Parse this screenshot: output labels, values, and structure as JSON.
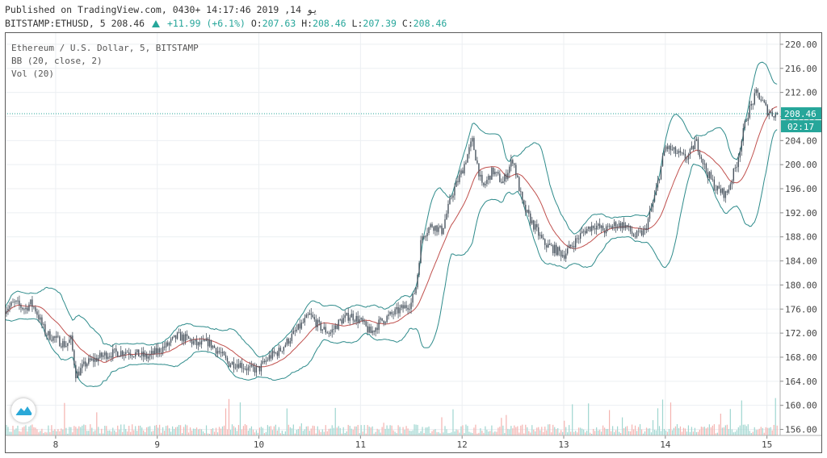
{
  "header": {
    "published": "Published on TradingView.com, يو 14, 2019 14:17:46 +0430",
    "symbol_line": "BITSTAMP:ETHUSD, 5",
    "last_price": "208.46",
    "change": "+11.99 (+6.1%)",
    "o_label": "O:",
    "o_value": "207.63",
    "h_label": "H:",
    "h_value": "208.46",
    "l_label": "L:",
    "l_value": "207.39",
    "c_label": "C:",
    "c_value": "208.46"
  },
  "legend": {
    "series_title": "Ethereum / U.S. Dollar, 5, BITSTAMP",
    "bb": "BB (20, close, 2)",
    "vol": "Vol (20)"
  },
  "price_badge": "208.46",
  "countdown_badge": "02:17",
  "colors": {
    "candle_up": "#26a69a",
    "candle_down": "#ef5350",
    "bb_band": "#2e8b8b",
    "bb_basis": "#c0504d",
    "vol_up": "#9fd6d0",
    "vol_down": "#f4b3b0",
    "price_line": "#26a69a"
  },
  "chart_data": {
    "type": "line",
    "x_tick_labels": [
      "8",
      "9",
      "10",
      "11",
      "12",
      "13",
      "14",
      "15"
    ],
    "y_tick_labels": [
      "156.00",
      "160.00",
      "164.00",
      "168.00",
      "172.00",
      "176.00",
      "180.00",
      "184.00",
      "188.00",
      "192.00",
      "196.00",
      "200.00",
      "204.00",
      "208.00",
      "212.00",
      "216.00",
      "220.00"
    ],
    "ylim": [
      155,
      222
    ],
    "xlim": [
      7.5,
      15.13
    ],
    "grid": true,
    "last_price": 208.46,
    "series": [
      {
        "kind": "close",
        "x": [
          7.5,
          7.6,
          7.7,
          7.75,
          7.8,
          7.9,
          8.0,
          8.1,
          8.15,
          8.2,
          8.3,
          8.5,
          8.7,
          8.9,
          9.0,
          9.1,
          9.2,
          9.3,
          9.4,
          9.5,
          9.6,
          9.7,
          9.8,
          9.9,
          10.0,
          10.1,
          10.2,
          10.3,
          10.4,
          10.5,
          10.6,
          10.7,
          10.8,
          10.9,
          11.0,
          11.1,
          11.2,
          11.3,
          11.4,
          11.5,
          11.55,
          11.6,
          11.7,
          11.8,
          11.9,
          12.0,
          12.1,
          12.2,
          12.3,
          12.4,
          12.5,
          12.6,
          12.7,
          12.8,
          12.9,
          13.0,
          13.1,
          13.2,
          13.3,
          13.4,
          13.5,
          13.6,
          13.7,
          13.8,
          13.9,
          14.0,
          14.1,
          14.2,
          14.25,
          14.3,
          14.4,
          14.5,
          14.6,
          14.7,
          14.8,
          14.9,
          14.97,
          15.0,
          15.05,
          15.1
        ],
        "y": [
          176,
          177,
          176,
          177,
          176,
          172,
          171,
          170,
          171,
          165,
          167,
          168.5,
          169,
          168,
          169,
          170,
          171.5,
          171,
          170,
          170.5,
          169,
          167,
          167,
          166,
          166,
          168,
          169,
          171,
          173,
          175,
          173,
          172,
          174,
          175,
          174,
          172,
          174,
          175,
          176,
          177,
          180,
          188,
          190,
          189,
          195,
          199,
          204,
          196,
          199,
          197,
          201,
          193,
          190,
          187,
          186,
          185,
          187,
          189,
          190,
          189,
          190,
          190,
          188,
          189,
          195,
          203,
          202,
          201,
          202,
          204,
          199,
          196,
          195,
          200,
          208,
          212,
          210,
          209,
          208.46,
          208.46
        ]
      }
    ]
  }
}
